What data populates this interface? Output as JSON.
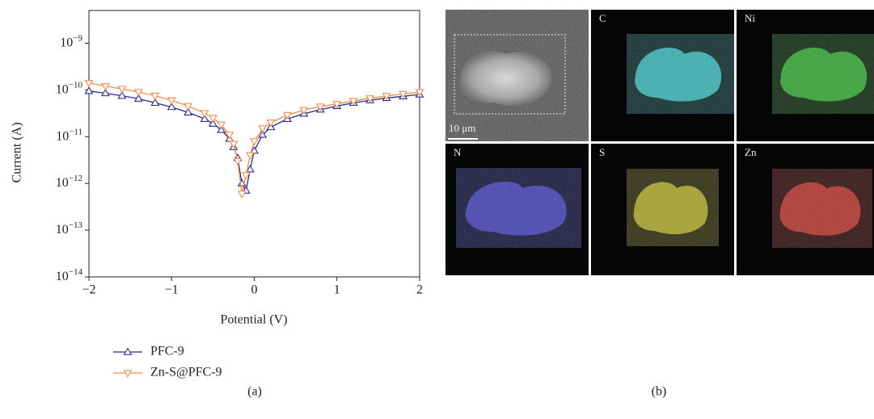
{
  "chart_data": {
    "type": "line",
    "xlabel": "Potential (V)",
    "ylabel": "Current (A)",
    "log_y": true,
    "x": [
      -2,
      -1.8,
      -1.6,
      -1.4,
      -1.2,
      -1,
      -0.8,
      -0.6,
      -0.5,
      -0.4,
      -0.3,
      -0.25,
      -0.2,
      -0.15,
      -0.1,
      -0.05,
      0,
      0.1,
      0.2,
      0.4,
      0.6,
      0.8,
      1,
      1.2,
      1.4,
      1.6,
      1.8,
      2
    ],
    "series": [
      {
        "name": "PFC-9",
        "color": "#2b2b8c",
        "marker": "triangle-up",
        "values": [
          9.5e-11,
          8.5e-11,
          7.5e-11,
          6.5e-11,
          5.3e-11,
          4.3e-11,
          3.3e-11,
          2.4e-11,
          1.9e-11,
          1.4e-11,
          9e-12,
          6e-12,
          3.5e-12,
          1e-12,
          7e-13,
          2e-12,
          5e-12,
          1.1e-11,
          1.6e-11,
          2.4e-11,
          3.1e-11,
          3.8e-11,
          4.5e-11,
          5.3e-11,
          6e-11,
          6.7e-11,
          7.3e-11,
          8e-11
        ]
      },
      {
        "name": "Zn-S@PFC-9",
        "color": "#f28c4a",
        "marker": "triangle-down",
        "values": [
          1.4e-10,
          1.2e-10,
          1.05e-10,
          9e-11,
          7.5e-11,
          6e-11,
          4.5e-11,
          3.2e-11,
          2.5e-11,
          1.8e-11,
          1.1e-11,
          7e-12,
          3e-12,
          6e-13,
          1.5e-12,
          4e-12,
          8e-12,
          1.5e-11,
          2e-11,
          2.9e-11,
          3.7e-11,
          4.4e-11,
          5e-11,
          5.8e-11,
          6.6e-11,
          7.4e-11,
          8.2e-11,
          9e-11
        ]
      }
    ],
    "xlim": [
      -2,
      2
    ],
    "xticks": [
      {
        "value": -2,
        "label": "−2"
      },
      {
        "value": -1,
        "label": "−1"
      },
      0,
      1,
      2
    ],
    "ylim": [
      1e-14,
      5e-09
    ],
    "yticks": [
      {
        "value": 1e-14,
        "label": "10−14"
      },
      {
        "value": 1e-13,
        "label": "10−13"
      },
      {
        "value": 1e-12,
        "label": "10−12"
      },
      {
        "value": 1e-11,
        "label": "10−11"
      },
      {
        "value": 1e-10,
        "label": "10−10"
      },
      {
        "value": 1e-09,
        "label": "10−9"
      }
    ],
    "legend": "below"
  },
  "panel_a_label": "(a)",
  "image_panel": {
    "label": "(b)",
    "scale_bar": "10 μm",
    "tiles": [
      {
        "label": "C"
      },
      {
        "label": "Ni"
      },
      {
        "label": "N"
      },
      {
        "label": "S"
      },
      {
        "label": "Zn"
      }
    ]
  }
}
